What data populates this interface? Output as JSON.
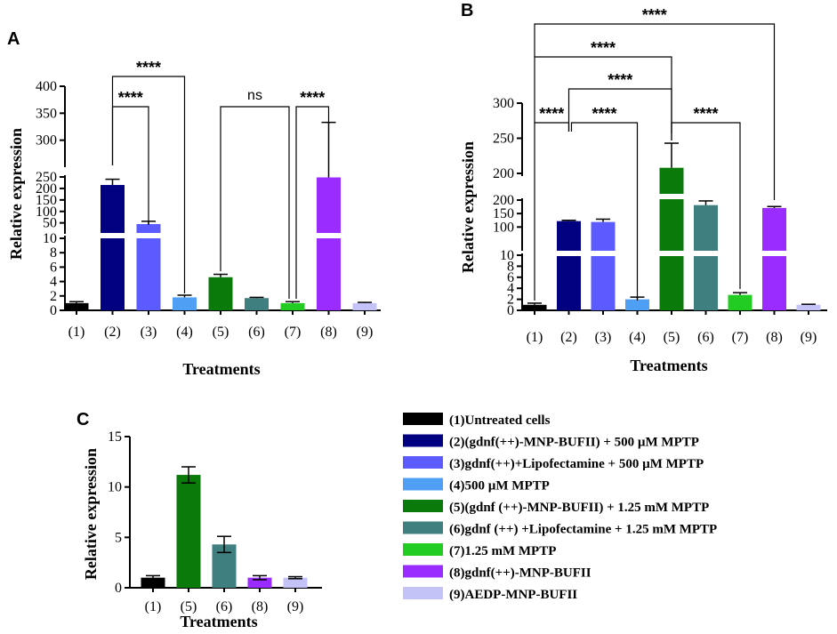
{
  "colors": {
    "1": "#000000",
    "2": "#000080",
    "3": "#5b5bff",
    "4": "#4fa0f5",
    "5": "#0a7a0a",
    "6": "#3f7f7f",
    "7": "#22cc22",
    "8": "#9a2cff",
    "9": "#c3c3f7"
  },
  "chart_data": [
    {
      "panel": "A",
      "type": "bar",
      "ylabel": "Relative expression",
      "xlabel": "Treatments",
      "categories": [
        "(1)",
        "(2)",
        "(3)",
        "(4)",
        "(5)",
        "(6)",
        "(7)",
        "(8)",
        "(9)"
      ],
      "values": [
        1.0,
        215,
        45,
        1.8,
        4.6,
        1.7,
        1.0,
        248,
        1.0
      ],
      "errors": [
        0.2,
        25,
        12,
        0.3,
        0.4,
        0.1,
        0.2,
        85,
        0.1
      ],
      "y_segments": [
        {
          "range": [
            0,
            10
          ],
          "ticks": [
            "0",
            "2",
            "4",
            "6",
            "8",
            "10"
          ]
        },
        {
          "range": [
            10,
            250
          ],
          "ticks": [
            "50",
            "100",
            "150",
            "200",
            "250"
          ]
        },
        {
          "range": [
            250,
            400
          ],
          "ticks": [
            "300",
            "350",
            "400"
          ]
        }
      ],
      "comparisons": [
        {
          "from": "(2)",
          "to": "(3)",
          "label": "****"
        },
        {
          "from": "(2)",
          "to": "(4)",
          "label": "****"
        },
        {
          "from": "(5)",
          "to": "(7)",
          "label": "ns"
        },
        {
          "from": "(7)",
          "to": "(8)",
          "label": "****"
        }
      ]
    },
    {
      "panel": "B",
      "type": "bar",
      "ylabel": "Relative expression",
      "xlabel": "Treatments",
      "categories": [
        "(1)",
        "(2)",
        "(3)",
        "(4)",
        "(5)",
        "(6)",
        "(7)",
        "(8)",
        "(9)"
      ],
      "values": [
        1.0,
        125,
        122,
        2.0,
        208,
        182,
        2.8,
        172,
        1.0
      ],
      "errors": [
        0.3,
        3,
        10,
        0.4,
        35,
        15,
        0.4,
        5,
        0.1
      ],
      "y_segments": [
        {
          "range": [
            0,
            10
          ],
          "ticks": [
            "0",
            "2",
            "4",
            "6",
            "8",
            "10"
          ]
        },
        {
          "range": [
            10,
            200
          ],
          "ticks": [
            "100",
            "150",
            "200"
          ]
        },
        {
          "range": [
            200,
            300
          ],
          "ticks": [
            "200",
            "250",
            "300"
          ]
        }
      ],
      "comparisons": [
        {
          "from": "(1)",
          "to": "(2)",
          "label": "****"
        },
        {
          "from": "(2)",
          "to": "(4)",
          "label": "****"
        },
        {
          "from": "(5)",
          "to": "(7)",
          "label": "****"
        },
        {
          "from": "(2)",
          "to": "(5)",
          "label": "****"
        },
        {
          "from": "(1)",
          "to": "(5)",
          "label": "****"
        },
        {
          "from": "(1)",
          "to": "(8)",
          "label": "****"
        }
      ]
    },
    {
      "panel": "C",
      "type": "bar",
      "ylabel": "Relative expression",
      "xlabel": "Treatments",
      "categories": [
        "(1)",
        "(5)",
        "(6)",
        "(8)",
        "(9)"
      ],
      "values": [
        1.0,
        11.2,
        4.3,
        1.0,
        1.0
      ],
      "errors": [
        0.2,
        0.8,
        0.8,
        0.2,
        0.1
      ],
      "ylim": [
        0,
        15
      ],
      "yticks": [
        "0",
        "5",
        "10",
        "15"
      ]
    }
  ],
  "legend": [
    {
      "key": "1",
      "label": "(1)Untreated cells"
    },
    {
      "key": "2",
      "label": "(2)(gdnf(++)-MNP-BUFII) + 500 µM MPTP"
    },
    {
      "key": "3",
      "label": "(3)gdnf(++)+Lipofectamine + 500 µM MPTP"
    },
    {
      "key": "4",
      "label": "(4)500 µM MPTP"
    },
    {
      "key": "5",
      "label": "(5)(gdnf (++)-MNP-BUFII) +  1.25 mM MPTP"
    },
    {
      "key": "6",
      "label": "(6)gdnf (++) +Lipofectamine + 1.25 mM MPTP"
    },
    {
      "key": "7",
      "label": "(7)1.25 mM MPTP"
    },
    {
      "key": "8",
      "label": "(8)gdnf(++)-MNP-BUFII"
    },
    {
      "key": "9",
      "label": "(9)AEDP-MNP-BUFII"
    }
  ]
}
